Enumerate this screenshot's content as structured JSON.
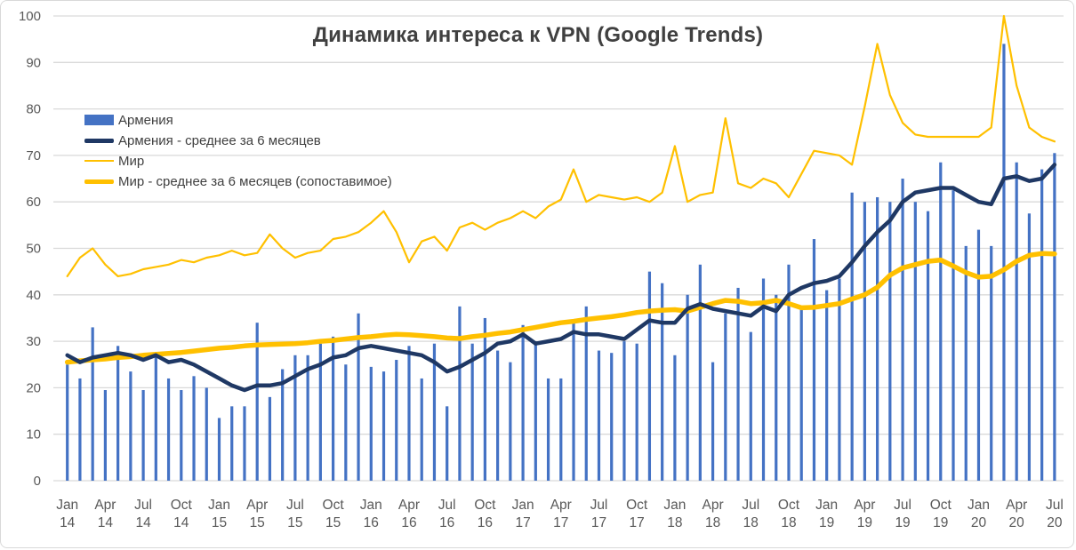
{
  "chart_data": {
    "type": "bar",
    "title": "Динамика интереса к VPN (Google Trends)",
    "x_start": "Jan 2014",
    "x_end": "Jul 2020",
    "months_count": 79,
    "xlabel": "",
    "ylabel": "",
    "ylim": [
      0,
      100
    ],
    "ytick_step": 10,
    "ytick_labels": [
      "0",
      "10",
      "20",
      "30",
      "40",
      "50",
      "60",
      "70",
      "80",
      "90",
      "100"
    ],
    "xtick_labels": [
      [
        "Jan",
        "14"
      ],
      [
        "Apr",
        "14"
      ],
      [
        "Jul",
        "14"
      ],
      [
        "Oct",
        "14"
      ],
      [
        "Jan",
        "15"
      ],
      [
        "Apr",
        "15"
      ],
      [
        "Jul",
        "15"
      ],
      [
        "Oct",
        "15"
      ],
      [
        "Jan",
        "16"
      ],
      [
        "Apr",
        "16"
      ],
      [
        "Jul",
        "16"
      ],
      [
        "Oct",
        "16"
      ],
      [
        "Jan",
        "17"
      ],
      [
        "Apr",
        "17"
      ],
      [
        "Jul",
        "17"
      ],
      [
        "Oct",
        "17"
      ],
      [
        "Jan",
        "18"
      ],
      [
        "Apr",
        "18"
      ],
      [
        "Jul",
        "18"
      ],
      [
        "Oct",
        "18"
      ],
      [
        "Jan",
        "19"
      ],
      [
        "Apr",
        "19"
      ],
      [
        "Jul",
        "19"
      ],
      [
        "Oct",
        "19"
      ],
      [
        "Jan",
        "20"
      ],
      [
        "Apr",
        "20"
      ],
      [
        "Jul",
        "20"
      ]
    ],
    "xtick_month_step": 3,
    "grid": true,
    "legend_position": "top-left",
    "colors": {
      "bar_blue": "#4472C4",
      "line_navy": "#1F3864",
      "line_gold": "#FFC000",
      "gridline": "#D9D9D9",
      "axis_text": "#595959",
      "title_text": "#404040"
    },
    "series": [
      {
        "name": "Армения",
        "type": "bar",
        "color": "#4472C4",
        "values": [
          25,
          22,
          33,
          19.5,
          29,
          23.5,
          19.5,
          26.5,
          22,
          19.5,
          22.5,
          20,
          13.5,
          16,
          16,
          34,
          18,
          24,
          27,
          27,
          29.5,
          31,
          25,
          36,
          24.5,
          23.5,
          26,
          29,
          22,
          29.5,
          16,
          37.5,
          29.5,
          35,
          28,
          25.5,
          33.5,
          30,
          22,
          22,
          34.5,
          37.5,
          28,
          27.5,
          30,
          29.5,
          45,
          42.5,
          27,
          40,
          46.5,
          25.5,
          36,
          41.5,
          32,
          43.5,
          40,
          46.5,
          37,
          52,
          41,
          43.5,
          62,
          60,
          61,
          60,
          65,
          60,
          58,
          68.5,
          62.5,
          50.5,
          54,
          50.5,
          94,
          68.5,
          57.5,
          67,
          70.5
        ]
      },
      {
        "name": "Армения - среднее за 6 месяцев",
        "type": "line",
        "color": "#1F3864",
        "stroke_width": 4.5,
        "values": [
          27,
          25.5,
          26.5,
          27,
          27.5,
          27,
          26,
          27,
          25.5,
          26,
          25,
          23.5,
          22,
          20.5,
          19.5,
          20.5,
          20.5,
          21,
          22.5,
          24,
          25,
          26.5,
          27,
          28.5,
          29,
          28.5,
          28,
          27.5,
          27,
          25.5,
          23.5,
          24.5,
          26,
          27.5,
          29.5,
          30,
          31.5,
          29.5,
          30,
          30.5,
          32,
          31.5,
          31.5,
          31,
          30.5,
          32.5,
          34.5,
          34,
          34,
          37,
          38,
          37,
          36.5,
          36,
          35.5,
          37.5,
          36.5,
          40,
          41.5,
          42.5,
          43,
          44,
          47,
          50.5,
          53.5,
          56,
          60,
          62,
          62.5,
          63,
          63,
          61.5,
          60,
          59.5,
          65,
          65.5,
          64.5,
          65,
          68
        ]
      },
      {
        "name": "Мир",
        "type": "line",
        "color": "#FFC000",
        "stroke_width": 2.2,
        "values": [
          44,
          48,
          50,
          46.5,
          44,
          44.5,
          45.5,
          46,
          46.5,
          47.5,
          47,
          48,
          48.5,
          49.5,
          48.5,
          49,
          53,
          50,
          48,
          49,
          49.5,
          52,
          52.5,
          53.5,
          55.5,
          58,
          53.5,
          47,
          51.5,
          52.5,
          49.5,
          54.5,
          55.5,
          54,
          55.5,
          56.5,
          58,
          56.5,
          59,
          60.5,
          67,
          60,
          61.5,
          61,
          60.5,
          61,
          60,
          62,
          72,
          60,
          61.5,
          62,
          78,
          64,
          63,
          65,
          64,
          61,
          66,
          71,
          70.5,
          70,
          68,
          80.5,
          94,
          83,
          77,
          74.5,
          74,
          74,
          74,
          74,
          74,
          76,
          100,
          85,
          76,
          74,
          73
        ]
      },
      {
        "name": "Мир - среднее за 6 месяцев (сопоставимое)",
        "type": "line",
        "color": "#FFC000",
        "stroke_width": 5.5,
        "values": [
          25.5,
          25.8,
          26,
          26.2,
          26.5,
          26.7,
          27,
          27.2,
          27.4,
          27.6,
          27.9,
          28.2,
          28.5,
          28.7,
          29,
          29.2,
          29.3,
          29.4,
          29.5,
          29.7,
          30,
          30.2,
          30.5,
          30.8,
          31,
          31.3,
          31.5,
          31.4,
          31.2,
          31,
          30.7,
          30.6,
          31,
          31.3,
          31.7,
          32,
          32.5,
          33,
          33.5,
          34,
          34.3,
          34.7,
          35,
          35.3,
          35.7,
          36.2,
          36.5,
          36.7,
          36.8,
          36.5,
          37.3,
          38.1,
          38.8,
          38.6,
          38.1,
          38.3,
          38.8,
          38.1,
          37.2,
          37.3,
          37.7,
          38.1,
          39.1,
          40,
          41.6,
          44.2,
          45.8,
          46.5,
          47.2,
          47.5,
          46.2,
          44.8,
          43.8,
          44,
          45.4,
          47.2,
          48.5,
          48.9,
          48.8
        ]
      }
    ]
  }
}
